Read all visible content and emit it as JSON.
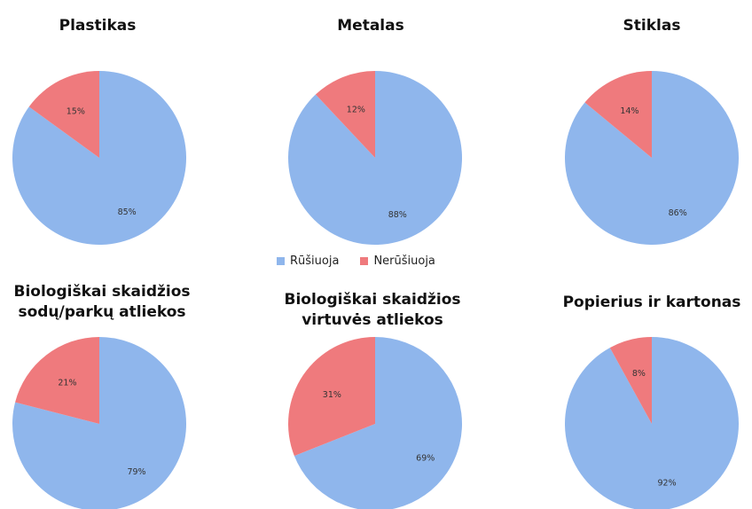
{
  "chart_data": [
    {
      "type": "pie",
      "title": [
        "Plastikas"
      ],
      "values": [
        85,
        15
      ],
      "labels": [
        "85%",
        "15%"
      ]
    },
    {
      "type": "pie",
      "title": [
        "Metalas"
      ],
      "values": [
        88,
        12
      ],
      "labels": [
        "88%",
        "12%"
      ]
    },
    {
      "type": "pie",
      "title": [
        "Stiklas"
      ],
      "values": [
        86,
        14
      ],
      "labels": [
        "86%",
        "14%"
      ]
    },
    {
      "type": "pie",
      "title": [
        "Biologiškai skaidžios",
        "sodų/parkų atliekos"
      ],
      "values": [
        79,
        21
      ],
      "labels": [
        "79%",
        "21%"
      ]
    },
    {
      "type": "pie",
      "title": [
        "Biologiškai skaidžios",
        "virtuvės atliekos"
      ],
      "values": [
        69,
        31
      ],
      "labels": [
        "69%",
        "31%"
      ]
    },
    {
      "type": "pie",
      "title": [
        "Popierius ir kartonas"
      ],
      "values": [
        92,
        8
      ],
      "labels": [
        "92%",
        "8%"
      ]
    }
  ],
  "legend": {
    "items": [
      {
        "name": "Rūšiuoja",
        "color": "#8fb6ec"
      },
      {
        "name": "Nerūšiuoja",
        "color": "#ef7a7d"
      }
    ],
    "placement": "center"
  }
}
